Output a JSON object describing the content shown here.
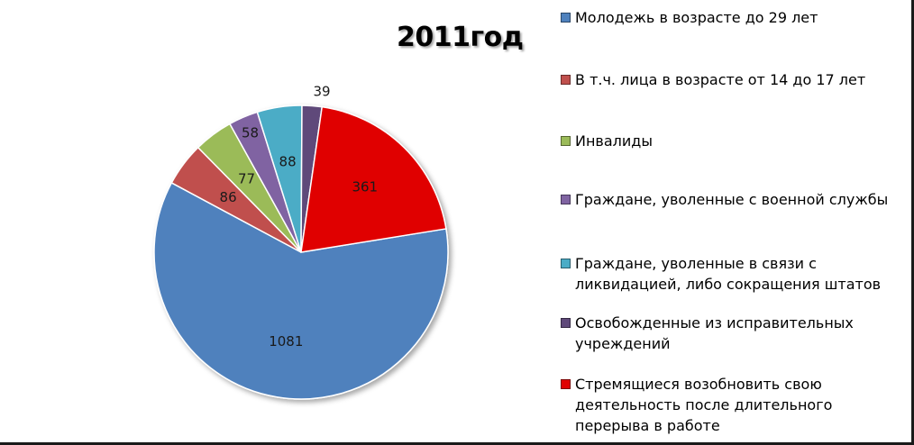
{
  "chart_data": {
    "type": "pie",
    "title": "2011год",
    "legend_position": "right",
    "categories": [
      "Молодежь в возрасте до 29 лет",
      "В т.ч. лица в возрасте от 14 до 17 лет",
      "Инвалиды",
      "Граждане, уволенные с военной службы",
      "Граждане, уволенные в связи с ликвидацией, либо сокращения штатов",
      "Освобожденные из исправительных учреждений",
      "Стремящиеся возобновить свою деятельность после длительного перерыва в работе"
    ],
    "values": [
      1081,
      86,
      77,
      58,
      88,
      39,
      361
    ],
    "data_labels": [
      "1081",
      "86",
      "77",
      "58",
      "88",
      "39",
      "361"
    ],
    "colors": [
      "#4F81BD",
      "#C0504D",
      "#9BBB59",
      "#8064A2",
      "#4BACC6",
      "#5F497A",
      "#E00000"
    ]
  }
}
